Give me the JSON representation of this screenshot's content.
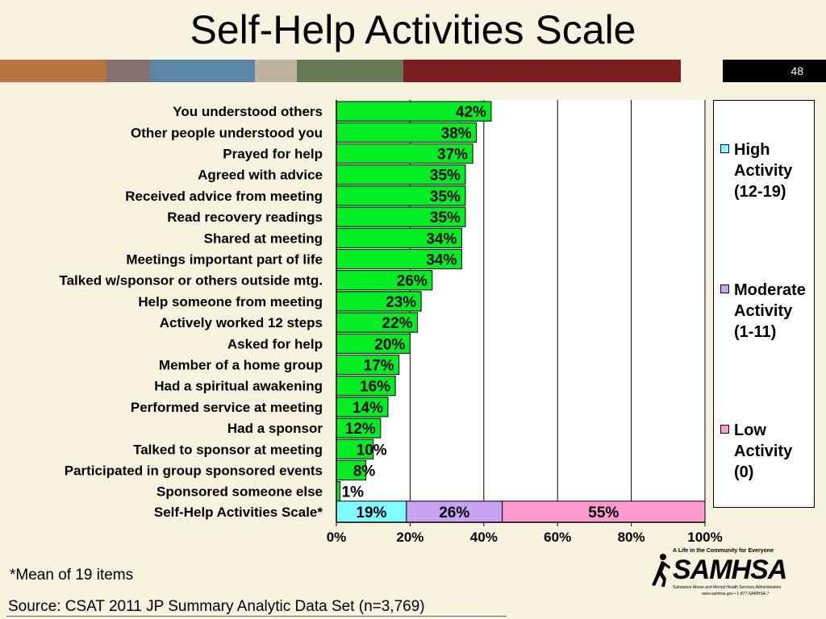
{
  "title": "Self-Help Activities Scale",
  "page_number": "48",
  "stripe_colors": [
    "#b8743f",
    "#857070",
    "#5c86a6",
    "#bdb39e",
    "#667a55",
    "#7a1e1e",
    "#f8f3de",
    "#000000"
  ],
  "footnote": "*Mean of 19 items",
  "source": "Source: CSAT 2011 JP Summary Analytic Data Set (n=3,769)",
  "logo": {
    "tagline": "A Life in the Community for Everyone",
    "name": "SAMHSA",
    "subtitle": "Substance Abuse and Mental Health Services Administration",
    "url": "www.samhsa.gov • 1-877-SAMHSA-7"
  },
  "legend": [
    {
      "label": "High Activity (12-19)",
      "color": "#7fffff"
    },
    {
      "label": "Moderate Activity (1-11)",
      "color": "#c7a3f2"
    },
    {
      "label": "Low Activity (0)",
      "color": "#ff9ad0"
    }
  ],
  "chart_data": {
    "type": "bar",
    "orientation": "horizontal",
    "xlim": [
      0,
      100
    ],
    "x_ticks": [
      "0%",
      "20%",
      "40%",
      "60%",
      "80%",
      "100%"
    ],
    "grid": true,
    "bar_color": "#00ee22",
    "categories": [
      "You understood others",
      "Other people understood you",
      "Prayed for help",
      "Agreed with advice",
      "Received advice from meeting",
      "Read recovery readings",
      "Shared at meeting",
      "Meetings important part of life",
      "Talked w/sponsor or others outside mtg.",
      "Help someone from meeting",
      "Actively worked 12 steps",
      "Asked for help",
      "Member of a home group",
      "Had a spiritual awakening",
      "Performed service at meeting",
      "Had a sponsor",
      "Talked to sponsor at meeting",
      "Participated in group sponsored events",
      "Sponsored someone else"
    ],
    "values": [
      42,
      38,
      37,
      35,
      35,
      35,
      34,
      34,
      26,
      23,
      22,
      20,
      17,
      16,
      14,
      12,
      10,
      8,
      1
    ],
    "value_labels": [
      "42%",
      "38%",
      "37%",
      "35%",
      "35%",
      "35%",
      "34%",
      "34%",
      "26%",
      "23%",
      "22%",
      "20%",
      "17%",
      "16%",
      "14%",
      "12%",
      "10%",
      "8%",
      "1%"
    ],
    "stacked_row": {
      "category": "Self-Help Activities Scale*",
      "segments": [
        {
          "name": "High Activity (12-19)",
          "value": 19,
          "label": "19%",
          "color": "#7fffff"
        },
        {
          "name": "Moderate Activity (1-11)",
          "value": 26,
          "label": "26%",
          "color": "#c7a3f2"
        },
        {
          "name": "Low Activity (0)",
          "value": 55,
          "label": "55%",
          "color": "#ff9ad0"
        }
      ]
    }
  }
}
